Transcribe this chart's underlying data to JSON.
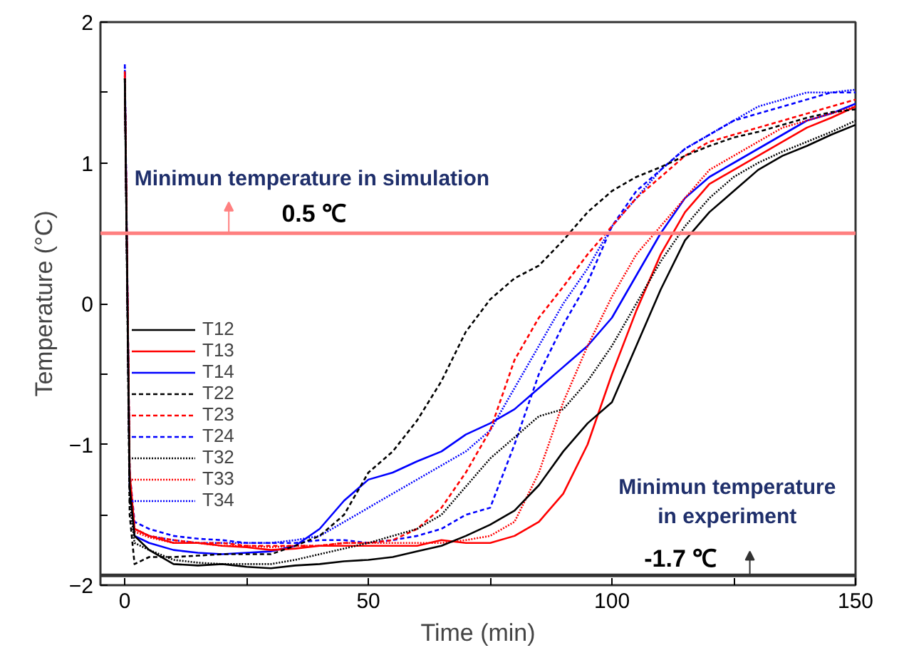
{
  "chart_data": {
    "type": "line",
    "xlabel": "Time (min)",
    "ylabel": "Temperature (°C)",
    "x": [
      0,
      1,
      2,
      5,
      10,
      15,
      20,
      25,
      30,
      35,
      40,
      45,
      50,
      55,
      60,
      65,
      70,
      75,
      80,
      85,
      90,
      95,
      100,
      105,
      110,
      115,
      120,
      125,
      130,
      135,
      140,
      145,
      150
    ],
    "xlim": [
      -5,
      150
    ],
    "ylim": [
      -2,
      2
    ],
    "xticks": [
      0,
      {
        "value": 25,
        "label": null
      },
      50,
      {
        "value": 75,
        "label": null
      },
      100,
      {
        "value": 125,
        "label": null
      },
      150
    ],
    "yticks": [
      -2,
      {
        "value": -1.5,
        "label": null
      },
      -1,
      {
        "value": -0.5,
        "label": null
      },
      0,
      {
        "value": 0.5,
        "label": null
      },
      1,
      {
        "value": 1.5,
        "label": null
      },
      2
    ],
    "grid": false,
    "legend": "left",
    "marker": "none",
    "series": [
      {
        "name": "T12",
        "color": "#000000",
        "line_style": "solid",
        "values": [
          1.6,
          -1.3,
          -1.65,
          -1.75,
          -1.85,
          -1.86,
          -1.85,
          -1.87,
          -1.88,
          -1.86,
          -1.85,
          -1.83,
          -1.82,
          -1.8,
          -1.76,
          -1.72,
          -1.65,
          -1.57,
          -1.47,
          -1.29,
          -1.05,
          -0.85,
          -0.7,
          -0.3,
          0.1,
          0.45,
          0.65,
          0.8,
          0.95,
          1.05,
          1.12,
          1.2,
          1.27
        ]
      },
      {
        "name": "T13",
        "color": "#ff0000",
        "line_style": "solid",
        "values": [
          1.62,
          -1.2,
          -1.6,
          -1.65,
          -1.7,
          -1.7,
          -1.72,
          -1.73,
          -1.75,
          -1.74,
          -1.72,
          -1.72,
          -1.72,
          -1.72,
          -1.72,
          -1.68,
          -1.7,
          -1.7,
          -1.65,
          -1.55,
          -1.35,
          -1.0,
          -0.5,
          -0.05,
          0.35,
          0.65,
          0.85,
          0.95,
          1.05,
          1.15,
          1.25,
          1.32,
          1.4
        ]
      },
      {
        "name": "T14",
        "color": "#0000ff",
        "line_style": "solid",
        "values": [
          1.65,
          -1.3,
          -1.65,
          -1.7,
          -1.75,
          -1.77,
          -1.78,
          -1.77,
          -1.76,
          -1.72,
          -1.6,
          -1.4,
          -1.25,
          -1.2,
          -1.12,
          -1.05,
          -0.93,
          -0.85,
          -0.75,
          -0.6,
          -0.45,
          -0.3,
          -0.1,
          0.2,
          0.5,
          0.75,
          0.9,
          1.0,
          1.1,
          1.2,
          1.3,
          1.35,
          1.42
        ]
      },
      {
        "name": "T22",
        "color": "#000000",
        "line_style": "dashed",
        "values": [
          1.6,
          -1.5,
          -1.85,
          -1.8,
          -1.8,
          -1.79,
          -1.78,
          -1.78,
          -1.78,
          -1.72,
          -1.65,
          -1.5,
          -1.2,
          -1.05,
          -0.83,
          -0.55,
          -0.2,
          0.03,
          0.18,
          0.27,
          0.45,
          0.65,
          0.8,
          0.9,
          0.97,
          1.05,
          1.12,
          1.18,
          1.22,
          1.27,
          1.32,
          1.36,
          1.38
        ]
      },
      {
        "name": "T23",
        "color": "#ff0000",
        "line_style": "dashed",
        "values": [
          1.65,
          -1.2,
          -1.6,
          -1.65,
          -1.68,
          -1.7,
          -1.7,
          -1.72,
          -1.72,
          -1.72,
          -1.72,
          -1.7,
          -1.7,
          -1.68,
          -1.6,
          -1.45,
          -1.2,
          -0.9,
          -0.4,
          -0.1,
          0.12,
          0.35,
          0.55,
          0.75,
          0.9,
          1.05,
          1.15,
          1.2,
          1.25,
          1.3,
          1.35,
          1.4,
          1.45
        ]
      },
      {
        "name": "T24",
        "color": "#0000ff",
        "line_style": "dashed",
        "values": [
          1.7,
          -1.2,
          -1.55,
          -1.6,
          -1.65,
          -1.67,
          -1.68,
          -1.7,
          -1.7,
          -1.7,
          -1.68,
          -1.68,
          -1.7,
          -1.68,
          -1.65,
          -1.6,
          -1.5,
          -1.45,
          -1.0,
          -0.5,
          -0.15,
          0.15,
          0.55,
          0.8,
          0.95,
          1.1,
          1.2,
          1.3,
          1.35,
          1.4,
          1.45,
          1.5,
          1.5
        ]
      },
      {
        "name": "T32",
        "color": "#000000",
        "line_style": "dotted",
        "values": [
          1.6,
          -1.4,
          -1.7,
          -1.75,
          -1.82,
          -1.84,
          -1.85,
          -1.85,
          -1.85,
          -1.82,
          -1.78,
          -1.74,
          -1.7,
          -1.65,
          -1.6,
          -1.5,
          -1.3,
          -1.1,
          -0.95,
          -0.8,
          -0.75,
          -0.55,
          -0.3,
          0.0,
          0.3,
          0.55,
          0.75,
          0.9,
          1.0,
          1.08,
          1.15,
          1.22,
          1.3
        ]
      },
      {
        "name": "T33",
        "color": "#ff0000",
        "line_style": "dotted",
        "values": [
          1.62,
          -1.25,
          -1.62,
          -1.66,
          -1.7,
          -1.7,
          -1.72,
          -1.72,
          -1.73,
          -1.72,
          -1.72,
          -1.7,
          -1.7,
          -1.7,
          -1.7,
          -1.7,
          -1.68,
          -1.65,
          -1.55,
          -1.2,
          -0.7,
          -0.3,
          0.05,
          0.35,
          0.55,
          0.75,
          0.95,
          1.05,
          1.15,
          1.25,
          1.3,
          1.35,
          1.4
        ]
      },
      {
        "name": "T34",
        "color": "#0000ff",
        "line_style": "dotted",
        "values": [
          1.68,
          -1.25,
          -1.6,
          -1.65,
          -1.68,
          -1.7,
          -1.7,
          -1.7,
          -1.7,
          -1.68,
          -1.65,
          -1.55,
          -1.45,
          -1.35,
          -1.25,
          -1.15,
          -1.05,
          -0.9,
          -0.6,
          -0.3,
          0.0,
          0.25,
          0.55,
          0.75,
          0.95,
          1.1,
          1.2,
          1.3,
          1.4,
          1.45,
          1.5,
          1.5,
          1.52
        ]
      }
    ],
    "ref_lines": [
      {
        "axis": "y",
        "value": 0.5,
        "label": "0.5 ℃",
        "color": "#ff8080",
        "line_style": "solid"
      },
      {
        "axis": "y",
        "value": -1.93,
        "label": "-1.7 ℃",
        "color": "#333333",
        "line_style": "solid"
      }
    ],
    "annotations": [
      "Minimun temperature in simulation",
      "Minimun temperature\nin experiment"
    ]
  }
}
